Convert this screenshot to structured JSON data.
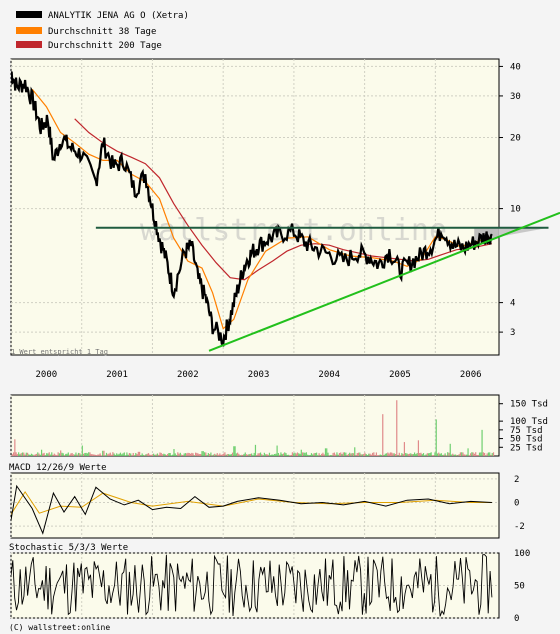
{
  "legend": [
    {
      "label": "ANALYTIK JENA AG O (Xetra)",
      "color": "#000000"
    },
    {
      "label": "Durchschnitt 38 Tage",
      "color": "#ff7f00"
    },
    {
      "label": "Durchschnitt 200 Tage",
      "color": "#c0272d"
    }
  ],
  "note": "1 Wert entspricht 1 Tag",
  "watermark": "wallstreet:online",
  "copyright": "(C) wallstreet:online",
  "colors": {
    "background": "#f4f4f4",
    "plot_bg": "#fbfbeb",
    "price": "#000000",
    "ma38": "#ff7f00",
    "ma200": "#c0272d",
    "resistance": "#1f5c40",
    "trendline": "#22c01c",
    "volume_up": "#6fcf6f",
    "volume_down": "#e08a8a",
    "macd": "#000000",
    "macd_signal": "#e0a000"
  },
  "chart_data": [
    {
      "type": "line",
      "panel": "price",
      "y_scale": "log",
      "ylim": [
        2.4,
        43
      ],
      "y_ticks": [
        3,
        4,
        10,
        20,
        30,
        40
      ],
      "xlim": [
        2000.0,
        2006.9
      ],
      "x_ticks": [
        "2000",
        "2001",
        "2002",
        "2003",
        "2004",
        "2005",
        "2006"
      ],
      "series": [
        {
          "name": "ANALYTIK JENA AG O (Xetra)",
          "x": [
            2000.0,
            2000.08,
            2000.2,
            2000.32,
            2000.42,
            2000.52,
            2000.6,
            2000.72,
            2000.85,
            2001.0,
            2001.2,
            2001.3,
            2001.45,
            2001.6,
            2001.75,
            2001.9,
            2002.0,
            2002.1,
            2002.2,
            2002.3,
            2002.45,
            2002.55,
            2002.65,
            2002.75,
            2002.85,
            2003.0,
            2003.1,
            2003.2,
            2003.3,
            2003.4,
            2003.5,
            2003.65,
            2003.8,
            2004.0,
            2004.15,
            2004.3,
            2004.5,
            2004.7,
            2004.9,
            2005.05,
            2005.2,
            2005.35,
            2005.5,
            2005.65,
            2005.8,
            2005.95,
            2006.1,
            2006.25,
            2006.4,
            2006.55,
            2006.7,
            2006.8
          ],
          "y": [
            38,
            33,
            34,
            28,
            22,
            24,
            16,
            20,
            18,
            17,
            13,
            19,
            15,
            16,
            12,
            14,
            10,
            7.5,
            6,
            4.5,
            6.5,
            7,
            5,
            4.2,
            3.2,
            2.8,
            3.5,
            4.5,
            5.8,
            6.5,
            7,
            7.5,
            7.8,
            8,
            7.2,
            6.8,
            6.4,
            6.0,
            6.5,
            6.3,
            5.8,
            6.6,
            5.5,
            5.9,
            6.4,
            7,
            8.2,
            7.0,
            6.8,
            7.2,
            7.6,
            7.8
          ]
        },
        {
          "name": "Durchschnitt 38 Tage",
          "x": [
            2000.3,
            2000.5,
            2000.7,
            2000.9,
            2001.1,
            2001.3,
            2001.5,
            2001.7,
            2001.9,
            2002.1,
            2002.3,
            2002.5,
            2002.7,
            2002.85,
            2003.0,
            2003.15,
            2003.35,
            2003.6,
            2003.9,
            2004.2,
            2004.5,
            2004.8,
            2005.1,
            2005.4,
            2005.6,
            2005.8,
            2006.0,
            2006.15,
            2006.35,
            2006.55,
            2006.8
          ],
          "y": [
            32,
            27,
            21,
            19,
            17,
            16,
            16,
            14,
            13,
            11,
            7.5,
            6,
            5.6,
            4.4,
            3.1,
            3.4,
            5.0,
            6.6,
            7.5,
            7.6,
            6.7,
            6.3,
            6.2,
            6.0,
            5.7,
            6.1,
            7.6,
            7.4,
            6.9,
            7.2,
            7.6
          ]
        },
        {
          "name": "Durchschnitt 200 Tage",
          "x": [
            2000.9,
            2001.1,
            2001.3,
            2001.5,
            2001.7,
            2001.9,
            2002.1,
            2002.3,
            2002.5,
            2002.7,
            2002.9,
            2003.1,
            2003.3,
            2003.5,
            2003.7,
            2003.9,
            2004.1,
            2004.3,
            2004.5,
            2004.7,
            2004.9,
            2005.1,
            2005.3,
            2005.5,
            2005.7,
            2005.9,
            2006.1,
            2006.3,
            2006.5,
            2006.7,
            2006.8
          ],
          "y": [
            24,
            21,
            19,
            17.5,
            16.5,
            15.5,
            13.5,
            10.5,
            8.5,
            7.0,
            5.9,
            5.1,
            5.0,
            5.5,
            6.0,
            6.6,
            7.0,
            7.1,
            7.0,
            6.7,
            6.5,
            6.3,
            6.2,
            6.1,
            6.0,
            6.1,
            6.4,
            6.7,
            6.8,
            7.0,
            7.1
          ]
        }
      ],
      "annotations": {
        "resistance": {
          "x_from": 2001.2,
          "x_to": 2006.9,
          "y": 8.3
        },
        "trendline": {
          "x_from": 2002.8,
          "y_from": 2.5,
          "x_to": 2006.9,
          "y_to": 7.6
        },
        "triangle_apex_x": 2007.6
      }
    },
    {
      "type": "bar",
      "panel": "volume",
      "ylim": [
        0,
        175
      ],
      "y_ticks": [
        25,
        50,
        75,
        100,
        150
      ],
      "y_tick_labels": [
        "25 Tsd",
        "50 Tsd",
        "75 Tsd",
        "100 Tsd",
        "150 Tsd"
      ],
      "unit": "Tsd",
      "peaks": [
        {
          "x": 2000.05,
          "value": 48
        },
        {
          "x": 2000.42,
          "value": 18
        },
        {
          "x": 2000.7,
          "value": 16
        },
        {
          "x": 2001.0,
          "value": 30
        },
        {
          "x": 2001.3,
          "value": 15
        },
        {
          "x": 2001.8,
          "value": 12
        },
        {
          "x": 2002.3,
          "value": 20
        },
        {
          "x": 2002.7,
          "value": 14
        },
        {
          "x": 2003.15,
          "value": 28
        },
        {
          "x": 2003.45,
          "value": 32
        },
        {
          "x": 2003.75,
          "value": 30
        },
        {
          "x": 2004.1,
          "value": 18
        },
        {
          "x": 2004.45,
          "value": 22
        },
        {
          "x": 2004.85,
          "value": 25
        },
        {
          "x": 2005.25,
          "value": 120
        },
        {
          "x": 2005.45,
          "value": 160
        },
        {
          "x": 2005.55,
          "value": 40
        },
        {
          "x": 2005.75,
          "value": 45
        },
        {
          "x": 2006.0,
          "value": 105
        },
        {
          "x": 2006.2,
          "value": 35
        },
        {
          "x": 2006.45,
          "value": 22
        },
        {
          "x": 2006.65,
          "value": 75
        }
      ]
    },
    {
      "type": "line",
      "panel": "macd",
      "title": "MACD 12/26/9 Werte",
      "ylim": [
        -3,
        2.5
      ],
      "y_ticks": [
        -2,
        0,
        2
      ],
      "series": [
        {
          "name": "MACD",
          "x": [
            2000.0,
            2000.08,
            2000.15,
            2000.3,
            2000.45,
            2000.6,
            2000.75,
            2000.9,
            2001.05,
            2001.2,
            2001.4,
            2001.6,
            2001.8,
            2002.0,
            2002.2,
            2002.4,
            2002.6,
            2002.8,
            2003.0,
            2003.2,
            2003.5,
            2003.8,
            2004.1,
            2004.4,
            2004.7,
            2005.0,
            2005.3,
            2005.6,
            2005.9,
            2006.2,
            2006.5,
            2006.8
          ],
          "y": [
            -1.5,
            1.4,
            0.8,
            -0.5,
            -2.6,
            0.8,
            -0.8,
            0.5,
            -1.0,
            1.3,
            0.3,
            -0.2,
            0.2,
            -0.6,
            -0.4,
            -0.5,
            0.5,
            -0.4,
            -0.3,
            0.1,
            0.4,
            0.2,
            -0.1,
            0.0,
            -0.2,
            0.1,
            -0.3,
            0.2,
            0.3,
            -0.1,
            0.1,
            0.0
          ]
        },
        {
          "name": "Signal",
          "x": [
            2000.0,
            2000.2,
            2000.4,
            2000.7,
            2001.0,
            2001.3,
            2001.7,
            2002.0,
            2002.5,
            2003.0,
            2003.5,
            2004.0,
            2004.5,
            2005.0,
            2005.5,
            2006.0,
            2006.5,
            2006.8
          ],
          "y": [
            -1.0,
            0.9,
            -0.9,
            -0.3,
            -0.4,
            0.8,
            0.0,
            -0.3,
            0.1,
            -0.3,
            0.3,
            0.0,
            -0.1,
            0.0,
            0.0,
            0.2,
            0.0,
            0.0
          ]
        }
      ]
    },
    {
      "type": "line",
      "panel": "stochastic",
      "title": "Stochastic 5/3/3 Werte",
      "ylim": [
        0,
        100
      ],
      "y_ticks": [
        0,
        50,
        100
      ],
      "series": [
        {
          "name": "Stochastic",
          "x_range": [
            2000.0,
            2006.8
          ],
          "y_range": [
            2,
            98
          ],
          "samples": 260
        }
      ]
    }
  ]
}
